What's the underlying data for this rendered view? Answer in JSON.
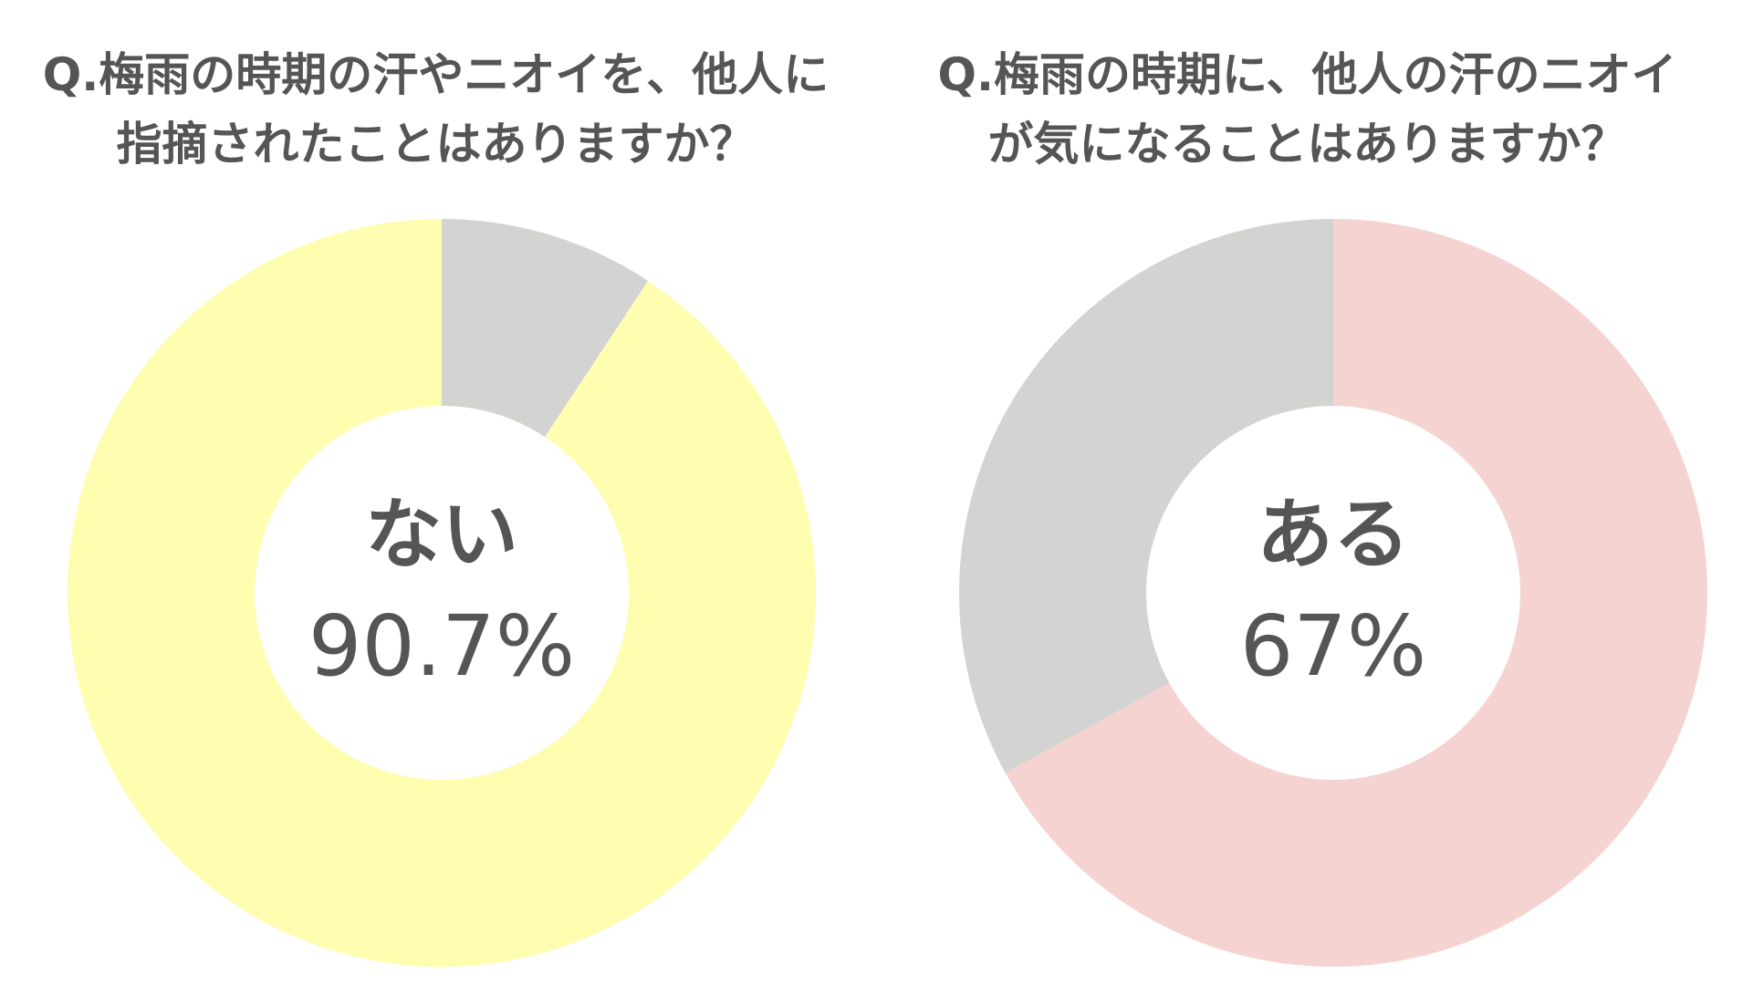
{
  "chart_data": [
    {
      "type": "pie",
      "title": "Q.梅雨の時期の汗やニオイを、他人に指摘されたことはありますか？",
      "title_lines": [
        "Q.梅雨の時期の汗やニオイを、他人に",
        "指摘されたことはありますか？"
      ],
      "center_category": "ない",
      "center_value": "90.7%",
      "slices": [
        {
          "value": 9.3,
          "color": "#d3d3d1"
        },
        {
          "value": 90.7,
          "color": "#fefdb0"
        }
      ],
      "donut_hole_ratio": 0.5,
      "grid": false,
      "legend": "none"
    },
    {
      "type": "pie",
      "title": "Q.梅雨の時期に、他人の汗のニオイが気になることはありますか？",
      "title_lines": [
        "Q.梅雨の時期に、他人の汗のニオイ",
        "が気になることはありますか？"
      ],
      "center_category": "ある",
      "center_value": "67%",
      "slices": [
        {
          "value": 67,
          "color": "#f5d3d1"
        },
        {
          "value": 33,
          "color": "#d3d3d1"
        }
      ],
      "donut_hole_ratio": 0.5,
      "grid": false,
      "legend": "none"
    }
  ]
}
